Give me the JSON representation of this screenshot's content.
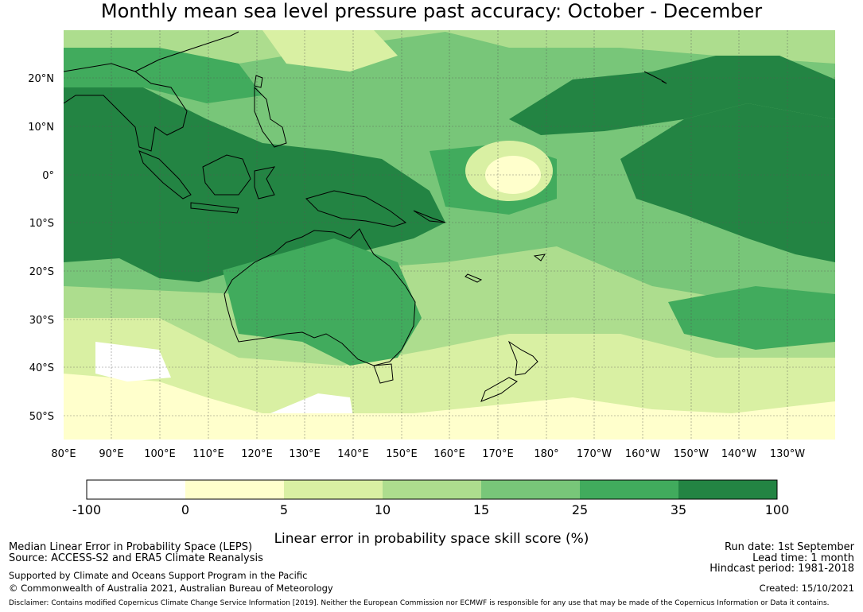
{
  "title": "Monthly mean sea level pressure past accuracy: October - December",
  "lat_labels": [
    "20°N",
    "10°N",
    "0°",
    "10°S",
    "20°S",
    "30°S",
    "40°S",
    "50°S"
  ],
  "lon_labels": [
    "80°E",
    "90°E",
    "100°E",
    "110°E",
    "120°E",
    "130°E",
    "140°E",
    "150°E",
    "160°E",
    "170°E",
    "180°",
    "170°W",
    "160°W",
    "150°W",
    "140°W",
    "130°W"
  ],
  "colorbar": {
    "ticks": [
      "-100",
      "0",
      "5",
      "10",
      "15",
      "25",
      "35",
      "100"
    ],
    "colors": [
      "#ffffff",
      "#ffffcc",
      "#d9f0a3",
      "#addd8e",
      "#78c679",
      "#41ab5d",
      "#238443"
    ],
    "label": "Linear error in probability space skill score (%)"
  },
  "footer": {
    "left1": "Median Linear Error in Probability Space (LEPS)",
    "left2": "Source: ACCESS-S2 and ERA5 Climate Reanalysis",
    "left3": "Supported by Climate and Oceans Support Program in the Pacific",
    "left4": "© Commonwealth of Australia 2021, Australian Bureau of Meteorology",
    "right1": "Run date: 1st September",
    "right2": "Lead time: 1 month",
    "right3": "Hindcast period: 1981-2018",
    "right4": "Created: 15/10/2021",
    "disclaimer": "Disclaimer: Contains modified Copernicus Climate Change Service Information [2019]. Neither the European Commission nor ECMWF is responsible for any use that may be made of the Copernicus Information or Data it contains."
  }
}
